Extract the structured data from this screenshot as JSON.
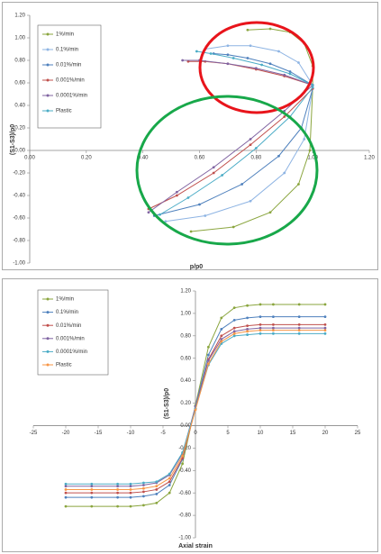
{
  "chart_data": [
    {
      "type": "line",
      "x_label": "p/p0",
      "y_label": "(S1-S3)/p0",
      "xlim": [
        0,
        1.2
      ],
      "xticks": [
        {
          "value": 0,
          "label": "0.00"
        },
        {
          "value": 0.2,
          "label": "0.20"
        },
        {
          "value": 0.4,
          "label": "0.40"
        },
        {
          "value": 0.6,
          "label": "0.60"
        },
        {
          "value": 0.8,
          "label": "0.80"
        },
        {
          "value": 1.0,
          "label": "1.00"
        },
        {
          "value": 1.2,
          "label": "1.20"
        }
      ],
      "ylim": [
        -1.0,
        1.2
      ],
      "yticks": [
        {
          "value": -1.0,
          "label": "-1.00"
        },
        {
          "value": -0.8,
          "label": "-0.80"
        },
        {
          "value": -0.6,
          "label": "-0.60"
        },
        {
          "value": -0.4,
          "label": "-0.40"
        },
        {
          "value": -0.2,
          "label": "-0.20"
        },
        {
          "value": 0,
          "label": "0.00"
        },
        {
          "value": 0.2,
          "label": "0.20"
        },
        {
          "value": 0.4,
          "label": "0.40"
        },
        {
          "value": 0.6,
          "label": "0.60"
        },
        {
          "value": 0.8,
          "label": "0.80"
        },
        {
          "value": 1.0,
          "label": "1.00"
        },
        {
          "value": 1.2,
          "label": "1.20"
        }
      ],
      "grid": false,
      "legend": "upper left",
      "series": [
        {
          "name": "1%/min",
          "color": "#8aa53e",
          "x": [
            1.0,
            1.0,
            0.97,
            0.92,
            0.85,
            0.77,
            null,
            1.0,
            0.99,
            0.95,
            0.85,
            0.72,
            0.57
          ],
          "values": [
            0.58,
            0.75,
            0.95,
            1.05,
            1.08,
            1.07,
            null,
            0.55,
            0.0,
            -0.3,
            -0.55,
            -0.68,
            -0.72
          ]
        },
        {
          "name": "0.1%/min",
          "color": "#8eb4e3",
          "x": [
            1.0,
            0.95,
            0.88,
            0.78,
            0.7,
            0.62,
            null,
            1.0,
            0.97,
            0.9,
            0.78,
            0.62,
            0.48
          ],
          "values": [
            0.58,
            0.78,
            0.88,
            0.93,
            0.93,
            0.9,
            null,
            0.55,
            0.1,
            -0.2,
            -0.45,
            -0.58,
            -0.63
          ]
        },
        {
          "name": "0.01%/min",
          "color": "#4f81bd",
          "x": [
            1.0,
            0.92,
            0.85,
            0.77,
            0.7,
            0.65,
            null,
            1.0,
            0.96,
            0.88,
            0.75,
            0.6,
            0.44
          ],
          "values": [
            0.58,
            0.7,
            0.77,
            0.82,
            0.85,
            0.86,
            null,
            0.55,
            0.2,
            -0.05,
            -0.3,
            -0.48,
            -0.58
          ]
        },
        {
          "name": "0.001%/min",
          "color": "#c0504d",
          "x": [
            1.0,
            0.9,
            0.8,
            0.7,
            0.62,
            0.56,
            null,
            1.0,
            0.9,
            0.78,
            0.65,
            0.52,
            0.42
          ],
          "values": [
            0.58,
            0.66,
            0.72,
            0.77,
            0.79,
            0.79,
            null,
            0.55,
            0.3,
            0.05,
            -0.2,
            -0.4,
            -0.52
          ]
        },
        {
          "name": "0.0001%/min",
          "color": "#8064a2",
          "x": [
            1.0,
            0.9,
            0.8,
            0.7,
            0.6,
            0.54,
            null,
            1.0,
            0.9,
            0.78,
            0.65,
            0.52,
            0.42
          ],
          "values": [
            0.58,
            0.67,
            0.73,
            0.77,
            0.8,
            0.8,
            null,
            0.58,
            0.35,
            0.1,
            -0.15,
            -0.37,
            -0.55
          ]
        },
        {
          "name": "Plastic",
          "color": "#4bacc6",
          "x": [
            1.0,
            0.92,
            0.82,
            0.72,
            0.64,
            0.59,
            null,
            1.0,
            0.92,
            0.8,
            0.68,
            0.56,
            0.46
          ],
          "values": [
            0.58,
            0.68,
            0.76,
            0.82,
            0.86,
            0.88,
            null,
            0.56,
            0.3,
            0.02,
            -0.22,
            -0.42,
            -0.57
          ]
        }
      ]
    },
    {
      "type": "line",
      "x_label": "Axial strain",
      "y_label": "(S1-S3)/p0",
      "x": [
        -20,
        -16,
        -12,
        -10,
        -8,
        -6,
        -4,
        -2,
        0,
        2,
        4,
        6,
        8,
        10,
        12,
        16,
        20
      ],
      "xlim": [
        -25,
        25
      ],
      "xticks": [
        -25,
        -20,
        -15,
        -10,
        -5,
        0,
        5,
        10,
        15,
        20,
        25
      ],
      "ylim": [
        -1.0,
        1.2
      ],
      "yticks": [
        {
          "value": -1.0,
          "label": "-1.00"
        },
        {
          "value": -0.8,
          "label": "-0.80"
        },
        {
          "value": -0.6,
          "label": "-0.60"
        },
        {
          "value": -0.4,
          "label": "-0.40"
        },
        {
          "value": -0.2,
          "label": "-0.20"
        },
        {
          "value": 0,
          "label": "0.00"
        },
        {
          "value": 0.2,
          "label": "0.20"
        },
        {
          "value": 0.4,
          "label": "0.40"
        },
        {
          "value": 0.6,
          "label": "0.60"
        },
        {
          "value": 0.8,
          "label": "0.80"
        },
        {
          "value": 1.0,
          "label": "1.00"
        },
        {
          "value": 1.2,
          "label": "1.20"
        }
      ],
      "grid": false,
      "legend": "upper left",
      "series": [
        {
          "name": "1%/min",
          "color": "#8aa53e",
          "values": [
            -0.72,
            -0.72,
            -0.72,
            -0.72,
            -0.71,
            -0.69,
            -0.6,
            -0.34,
            0.18,
            0.7,
            0.96,
            1.05,
            1.07,
            1.08,
            1.08,
            1.08,
            1.08
          ]
        },
        {
          "name": "0.1%/min",
          "color": "#4f81bd",
          "values": [
            -0.64,
            -0.64,
            -0.64,
            -0.64,
            -0.63,
            -0.61,
            -0.53,
            -0.3,
            0.17,
            0.63,
            0.86,
            0.94,
            0.96,
            0.97,
            0.97,
            0.97,
            0.97
          ]
        },
        {
          "name": "0.01%/min",
          "color": "#c0504d",
          "values": [
            -0.6,
            -0.6,
            -0.6,
            -0.6,
            -0.59,
            -0.57,
            -0.5,
            -0.29,
            0.15,
            0.59,
            0.8,
            0.87,
            0.89,
            0.9,
            0.9,
            0.9,
            0.9
          ]
        },
        {
          "name": "0.001%/min",
          "color": "#8064a2",
          "values": [
            -0.54,
            -0.54,
            -0.54,
            -0.54,
            -0.53,
            -0.51,
            -0.44,
            -0.25,
            0.17,
            0.58,
            0.77,
            0.84,
            0.86,
            0.87,
            0.87,
            0.87,
            0.87
          ]
        },
        {
          "name": "0.0001%/min",
          "color": "#4bacc6",
          "values": [
            -0.52,
            -0.52,
            -0.52,
            -0.52,
            -0.51,
            -0.5,
            -0.43,
            -0.24,
            0.15,
            0.54,
            0.73,
            0.8,
            0.81,
            0.82,
            0.82,
            0.82,
            0.82
          ]
        },
        {
          "name": "Plastic",
          "color": "#f79646",
          "values": [
            -0.57,
            -0.57,
            -0.57,
            -0.57,
            -0.56,
            -0.54,
            -0.47,
            -0.27,
            0.14,
            0.55,
            0.75,
            0.82,
            0.84,
            0.85,
            0.85,
            0.85,
            0.85
          ]
        }
      ]
    }
  ]
}
